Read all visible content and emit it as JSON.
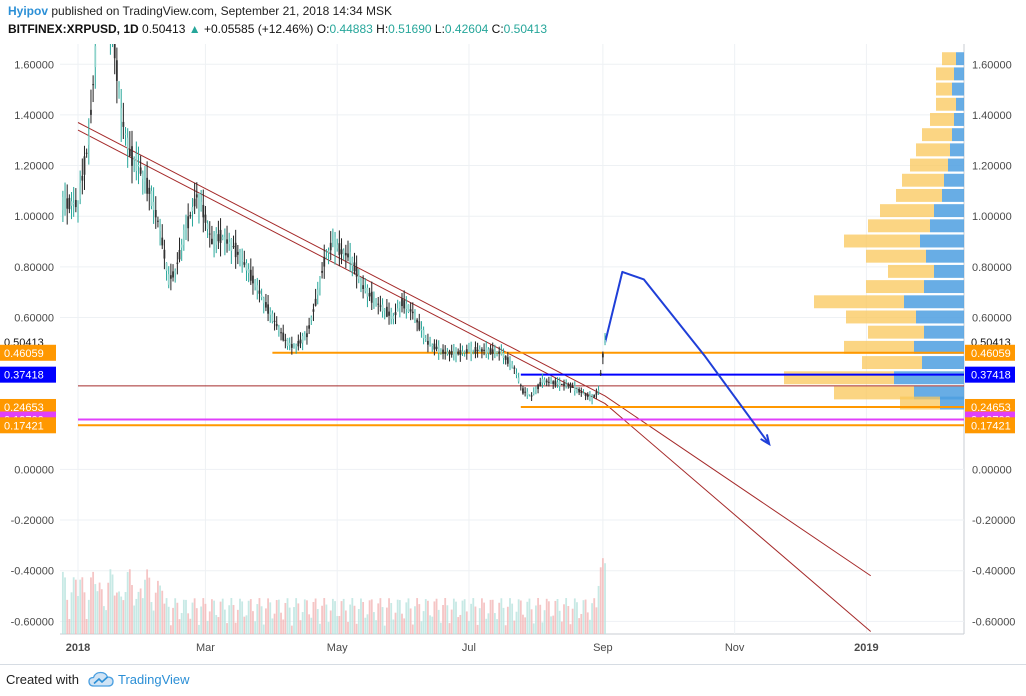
{
  "header": {
    "author": "Hyipov",
    "published_text": "published on TradingView.com, September 21, 2018 14:34 MSK",
    "symbol": "BITFINEX:XRPUSD, 1D",
    "last": "0.50413",
    "change": "+0.05585 (+12.46%)",
    "o_label": "O:",
    "o_value": "0.44883",
    "h_label": "H:",
    "h_value": "0.51690",
    "l_label": "L:",
    "l_value": "0.42604",
    "c_label": "C:",
    "c_value": "0.50413"
  },
  "footer": {
    "created_with": "Created with",
    "brand": "TradingView"
  },
  "colors": {
    "up": "#26a69a",
    "down": "#222222",
    "orange": "#ff9800",
    "blue": "#0000ff",
    "magenta": "#e040fb",
    "brown": "#a52a2a",
    "arrow": "#1f3fd8",
    "vp_orange": "#f9c75a",
    "vp_blue": "#4d9fe0"
  },
  "chart_data": {
    "type": "candlestick",
    "symbol": "BITFINEX:XRPUSD",
    "interval": "1D",
    "y_ticks": [
      "1.60000",
      "1.40000",
      "1.20000",
      "1.00000",
      "0.80000",
      "0.60000",
      "0.00000",
      "-0.20000",
      "-0.40000",
      "-0.60000"
    ],
    "y_tick_values": [
      1.6,
      1.4,
      1.2,
      1.0,
      0.8,
      0.6,
      0.0,
      -0.2,
      -0.4,
      -0.6
    ],
    "x_ticks": [
      "2018",
      "Mar",
      "May",
      "Jul",
      "Sep",
      "Nov",
      "2019"
    ],
    "ylim": [
      -0.65,
      1.68
    ],
    "price_tags": [
      {
        "label": "0.50413",
        "value": 0.50413,
        "style": "last"
      },
      {
        "label": "0.46059",
        "value": 0.46059,
        "style": "orange"
      },
      {
        "label": "0.37418",
        "value": 0.37418,
        "style": "blue"
      },
      {
        "label": "0.24653",
        "value": 0.24653,
        "style": "orange"
      },
      {
        "label": "0.19700",
        "value": 0.197,
        "style": "magenta"
      },
      {
        "label": "0.17421",
        "value": 0.17421,
        "style": "orange"
      }
    ],
    "price_path": [
      {
        "d": 0,
        "p": 1.05
      },
      {
        "d": 5,
        "p": 1.3
      },
      {
        "d": 10,
        "p": 1.85
      },
      {
        "d": 16,
        "p": 1.75
      },
      {
        "d": 20,
        "p": 1.4
      },
      {
        "d": 24,
        "p": 1.25
      },
      {
        "d": 28,
        "p": 1.2
      },
      {
        "d": 33,
        "p": 1.1
      },
      {
        "d": 38,
        "p": 0.95
      },
      {
        "d": 42,
        "p": 0.75
      },
      {
        "d": 45,
        "p": 0.78
      },
      {
        "d": 50,
        "p": 0.95
      },
      {
        "d": 55,
        "p": 1.08
      },
      {
        "d": 58,
        "p": 1.02
      },
      {
        "d": 62,
        "p": 0.9
      },
      {
        "d": 66,
        "p": 0.92
      },
      {
        "d": 72,
        "p": 0.88
      },
      {
        "d": 78,
        "p": 0.8
      },
      {
        "d": 84,
        "p": 0.7
      },
      {
        "d": 90,
        "p": 0.6
      },
      {
        "d": 96,
        "p": 0.51
      },
      {
        "d": 100,
        "p": 0.48
      },
      {
        "d": 106,
        "p": 0.53
      },
      {
        "d": 110,
        "p": 0.66
      },
      {
        "d": 114,
        "p": 0.82
      },
      {
        "d": 118,
        "p": 0.9
      },
      {
        "d": 122,
        "p": 0.86
      },
      {
        "d": 126,
        "p": 0.84
      },
      {
        "d": 132,
        "p": 0.72
      },
      {
        "d": 138,
        "p": 0.66
      },
      {
        "d": 146,
        "p": 0.6
      },
      {
        "d": 150,
        "p": 0.66
      },
      {
        "d": 155,
        "p": 0.62
      },
      {
        "d": 162,
        "p": 0.5
      },
      {
        "d": 170,
        "p": 0.46
      },
      {
        "d": 176,
        "p": 0.46
      },
      {
        "d": 182,
        "p": 0.47
      },
      {
        "d": 188,
        "p": 0.47
      },
      {
        "d": 196,
        "p": 0.46
      },
      {
        "d": 202,
        "p": 0.4
      },
      {
        "d": 206,
        "p": 0.31
      },
      {
        "d": 210,
        "p": 0.29
      },
      {
        "d": 215,
        "p": 0.35
      },
      {
        "d": 222,
        "p": 0.34
      },
      {
        "d": 228,
        "p": 0.33
      },
      {
        "d": 234,
        "p": 0.3
      },
      {
        "d": 238,
        "p": 0.28
      },
      {
        "d": 241,
        "p": 0.31
      },
      {
        "d": 243,
        "p": 0.45
      },
      {
        "d": 244,
        "p": 0.504
      }
    ],
    "annotations": {
      "channel_upper": [
        [
          0,
          1.37
        ],
        [
          244,
          0.29
        ],
        [
          367,
          -0.42
        ]
      ],
      "channel_lower": [
        [
          0,
          1.34
        ],
        [
          244,
          0.26
        ],
        [
          367,
          -0.64
        ]
      ],
      "h_lines": [
        {
          "value": 0.46059,
          "from_day": 90,
          "color": "orange"
        },
        {
          "value": 0.37418,
          "from_day": 205,
          "color": "blue"
        },
        {
          "value": 0.24653,
          "from_day": 205,
          "color": "orange"
        },
        {
          "value": 0.197,
          "from_day": 0,
          "color": "magenta"
        },
        {
          "value": 0.17421,
          "from_day": 0,
          "color": "orange"
        },
        {
          "value": 0.33,
          "from_day": 0,
          "color": "brown"
        }
      ],
      "forecast_arrow": [
        [
          244,
          0.5
        ],
        [
          252,
          0.78
        ],
        [
          262,
          0.75
        ],
        [
          290,
          0.45
        ],
        [
          320,
          0.1
        ]
      ]
    },
    "volume_profile": [
      {
        "p": 1.62,
        "o": 14,
        "b": 8
      },
      {
        "p": 1.56,
        "o": 18,
        "b": 10
      },
      {
        "p": 1.5,
        "o": 16,
        "b": 12
      },
      {
        "p": 1.44,
        "o": 20,
        "b": 8
      },
      {
        "p": 1.38,
        "o": 24,
        "b": 10
      },
      {
        "p": 1.32,
        "o": 30,
        "b": 12
      },
      {
        "p": 1.26,
        "o": 34,
        "b": 14
      },
      {
        "p": 1.2,
        "o": 38,
        "b": 16
      },
      {
        "p": 1.14,
        "o": 42,
        "b": 20
      },
      {
        "p": 1.08,
        "o": 46,
        "b": 22
      },
      {
        "p": 1.02,
        "o": 54,
        "b": 30
      },
      {
        "p": 0.96,
        "o": 62,
        "b": 34
      },
      {
        "p": 0.9,
        "o": 76,
        "b": 44
      },
      {
        "p": 0.84,
        "o": 60,
        "b": 38
      },
      {
        "p": 0.78,
        "o": 46,
        "b": 30
      },
      {
        "p": 0.72,
        "o": 58,
        "b": 40
      },
      {
        "p": 0.66,
        "o": 90,
        "b": 60
      },
      {
        "p": 0.6,
        "o": 70,
        "b": 48
      },
      {
        "p": 0.54,
        "o": 56,
        "b": 40
      },
      {
        "p": 0.48,
        "o": 70,
        "b": 50
      },
      {
        "p": 0.42,
        "o": 60,
        "b": 42
      },
      {
        "p": 0.36,
        "o": 110,
        "b": 70
      },
      {
        "p": 0.3,
        "o": 80,
        "b": 50
      },
      {
        "p": 0.26,
        "o": 40,
        "b": 24
      }
    ]
  }
}
